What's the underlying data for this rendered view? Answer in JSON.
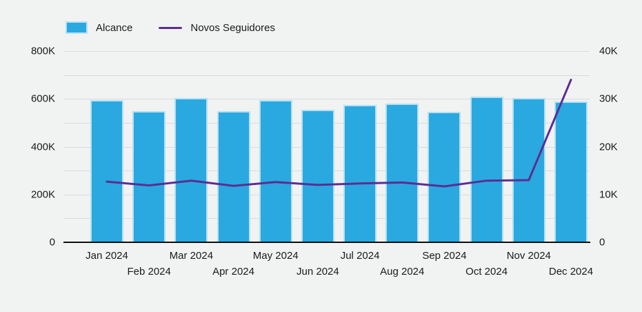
{
  "legend": {
    "items": [
      {
        "label": "Alcance",
        "swatch": "bar",
        "color": "#29a9e0"
      },
      {
        "label": "Novos Seguidores",
        "swatch": "line",
        "color": "#5c2d91"
      }
    ]
  },
  "chart_data": {
    "type": "bar+line",
    "title": "",
    "categories": [
      "Jan 2024",
      "Feb 2024",
      "Mar 2024",
      "Apr 2024",
      "May 2024",
      "Jun 2024",
      "Jul 2024",
      "Aug 2024",
      "Sep 2024",
      "Oct 2024",
      "Nov 2024",
      "Dec 2024"
    ],
    "series": [
      {
        "name": "Alcance",
        "type": "bar",
        "axis": "left",
        "color": "#29a9e0",
        "values": [
          595000,
          550000,
          605000,
          550000,
          595000,
          555000,
          575000,
          580000,
          545000,
          610000,
          605000,
          590000
        ]
      },
      {
        "name": "Novos Seguidores",
        "type": "line",
        "axis": "right",
        "color": "#5c2d91",
        "values": [
          12700,
          11900,
          12900,
          11800,
          12600,
          12000,
          12300,
          12500,
          11700,
          12900,
          13000,
          34000
        ]
      }
    ],
    "left_axis": {
      "min": 0,
      "max": 800000,
      "tick_values": [
        0,
        200000,
        400000,
        600000,
        800000
      ],
      "tick_labels": [
        "0",
        "200K",
        "400K",
        "600K",
        "800K"
      ],
      "gridline_interval": 100000
    },
    "right_axis": {
      "min": 0,
      "max": 40000,
      "tick_values": [
        0,
        10000,
        20000,
        30000,
        40000
      ],
      "tick_labels": [
        "0",
        "10K",
        "20K",
        "30K",
        "40K"
      ]
    },
    "grid": true,
    "legend_position": "top-left",
    "x_labels_staggered": true
  },
  "colors": {
    "background": "#f1f2f2",
    "gridline": "#d9dadb",
    "axis_line": "#0d0d0d",
    "bar": "#29a9e0",
    "bar_border": "rgba(255,255,255,0.65)",
    "line": "#5c2d91",
    "text": "#1a1a1a"
  }
}
